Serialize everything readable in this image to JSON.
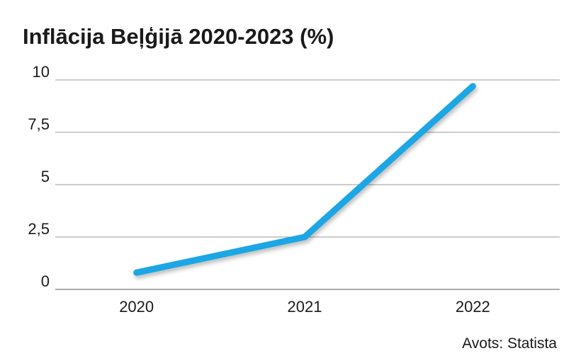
{
  "chart_data": {
    "type": "line",
    "title": "Inflācija Beļģijā 2020-2023 (%)",
    "source": "Avots: Statista",
    "categories": [
      "2020",
      "2021",
      "2022"
    ],
    "series": [
      {
        "name": "Inflācija",
        "color": "#1ba6e4",
        "values": [
          0.8,
          2.5,
          9.7
        ]
      }
    ],
    "ylim": [
      0,
      10
    ],
    "yticks": [
      0,
      {
        "value": 2.5,
        "label": "2,5"
      },
      5,
      {
        "value": 7.5,
        "label": "7,5"
      },
      10
    ],
    "grid": true
  }
}
